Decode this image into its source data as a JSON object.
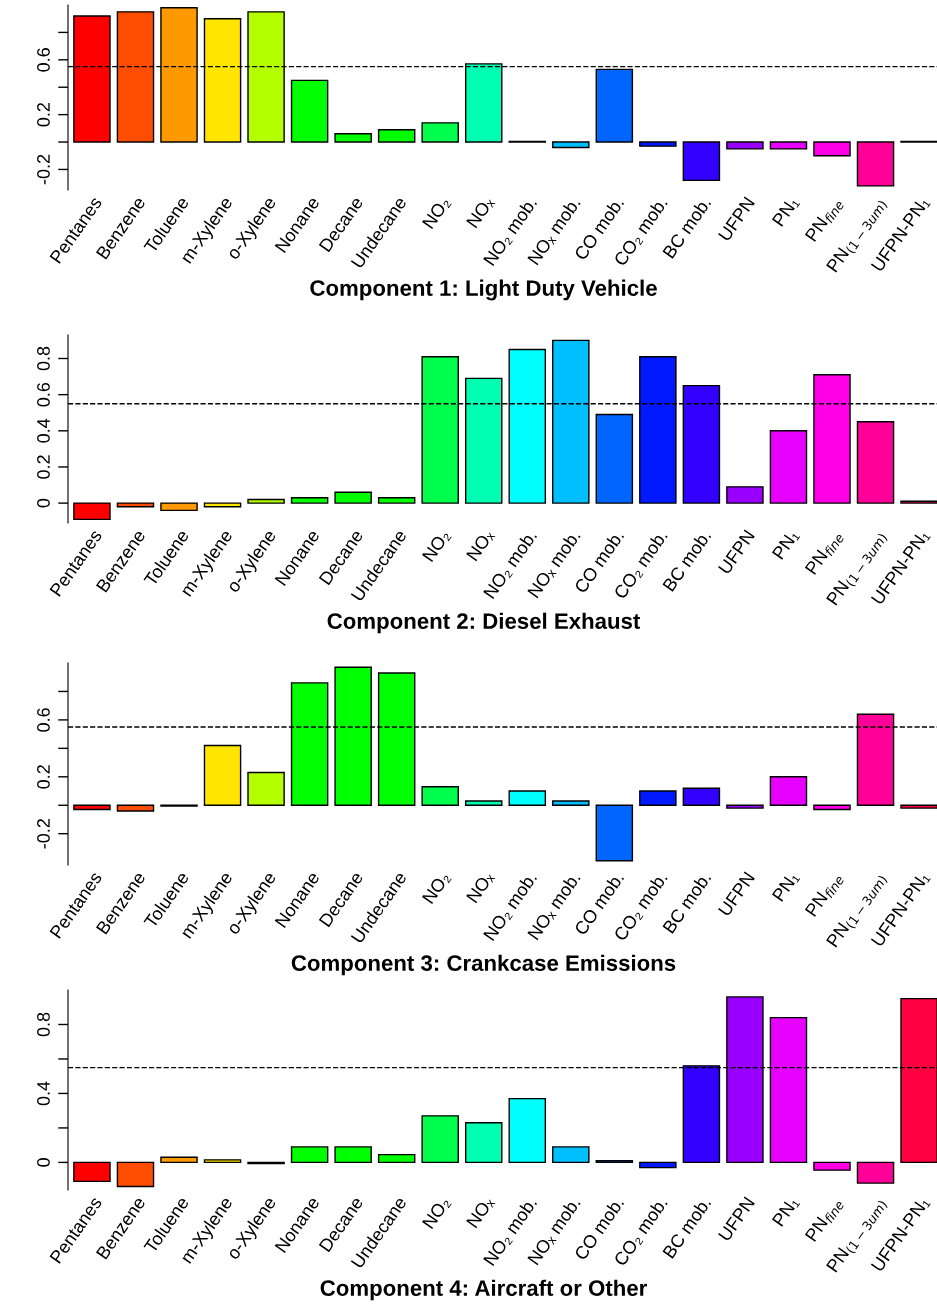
{
  "chart_data": [
    {
      "type": "bar",
      "title": "Component 1: Light Duty Vehicle",
      "categories": [
        "Pentanes",
        "Benzene",
        "Toluene",
        "m-Xylene",
        "o-Xylene",
        "Nonane",
        "Decane",
        "Undecane",
        "NO₂",
        "NOₓ",
        "NO₂ mob.",
        "NOₓ mob.",
        "CO mob.",
        "CO₂ mob.",
        "BC mob.",
        "UFPN",
        "PN₁",
        "PN$_{fine}$",
        "PN$_{(1−3um)}$",
        "UFPN-PN₁"
      ],
      "values": [
        0.92,
        0.95,
        0.98,
        0.9,
        0.95,
        0.45,
        0.06,
        0.09,
        0.14,
        0.57,
        0.005,
        -0.04,
        0.53,
        -0.03,
        -0.28,
        -0.05,
        -0.05,
        -0.1,
        -0.32,
        0.005
      ],
      "colors": [
        "#ff0000",
        "#ff4d00",
        "#ff9900",
        "#ffe500",
        "#b3ff00",
        "#00ff00",
        "#00ff00",
        "#00ff00",
        "#00ff4d",
        "#00ffb3",
        "#00ffff",
        "#00bfff",
        "#0066ff",
        "#0019ff",
        "#3300ff",
        "#9900ff",
        "#e500ff",
        "#ff00e6",
        "#ff0099",
        "#ff0040"
      ],
      "ylim": [
        -0.35,
        1.0
      ],
      "yticks": [
        -0.2,
        {
          "value": 0,
          "label": null
        },
        0.2,
        {
          "value": 0.4,
          "label": null
        },
        0.6,
        {
          "value": 0.8,
          "label": null
        }
      ],
      "ref_lines": [
        {
          "axis": "y",
          "value": 0.55,
          "color": "#000000",
          "line_style": "dashed"
        }
      ]
    },
    {
      "type": "bar",
      "title": "Component 2: Diesel Exhaust",
      "categories": [
        "Pentanes",
        "Benzene",
        "Toluene",
        "m-Xylene",
        "o-Xylene",
        "Nonane",
        "Decane",
        "Undecane",
        "NO₂",
        "NOₓ",
        "NO₂ mob.",
        "NOₓ mob.",
        "CO mob.",
        "CO₂ mob.",
        "BC mob.",
        "UFPN",
        "PN₁",
        "PN$_{fine}$",
        "PN$_{(1−3um)}$",
        "UFPN-PN₁"
      ],
      "values": [
        -0.09,
        -0.02,
        -0.04,
        -0.02,
        0.02,
        0.03,
        0.06,
        0.03,
        0.81,
        0.69,
        0.85,
        0.9,
        0.49,
        0.81,
        0.65,
        0.09,
        0.4,
        0.71,
        0.45,
        0.01
      ],
      "colors": [
        "#ff0000",
        "#ff4d00",
        "#ff9900",
        "#ffe500",
        "#b3ff00",
        "#00ff00",
        "#00ff00",
        "#00ff00",
        "#00ff4d",
        "#00ffb3",
        "#00ffff",
        "#00bfff",
        "#0066ff",
        "#0019ff",
        "#3300ff",
        "#9900ff",
        "#e500ff",
        "#ff00e6",
        "#ff0099",
        "#ff0040"
      ],
      "ylim": [
        -0.11,
        0.93
      ],
      "yticks": [
        0,
        0.2,
        0.4,
        0.6,
        0.8
      ],
      "ref_lines": [
        {
          "axis": "y",
          "value": 0.55,
          "color": "#000000",
          "line_style": "dashed"
        }
      ]
    },
    {
      "type": "bar",
      "title": "Component 3: Crankcase Emissions",
      "categories": [
        "Pentanes",
        "Benzene",
        "Toluene",
        "m-Xylene",
        "o-Xylene",
        "Nonane",
        "Decane",
        "Undecane",
        "NO₂",
        "NOₓ",
        "NO₂ mob.",
        "NOₓ mob.",
        "CO mob.",
        "CO₂ mob.",
        "BC mob.",
        "UFPN",
        "PN₁",
        "PN$_{fine}$",
        "PN$_{(1−3um)}$",
        "UFPN-PN₁"
      ],
      "values": [
        -0.03,
        -0.04,
        -0.005,
        0.42,
        0.23,
        0.86,
        0.97,
        0.93,
        0.13,
        0.03,
        0.1,
        0.03,
        -0.39,
        0.1,
        0.12,
        -0.02,
        0.2,
        -0.03,
        0.64,
        -0.02
      ],
      "colors": [
        "#ff0000",
        "#ff4d00",
        "#ff9900",
        "#ffe500",
        "#b3ff00",
        "#00ff00",
        "#00ff00",
        "#00ff00",
        "#00ff4d",
        "#00ffb3",
        "#00ffff",
        "#00bfff",
        "#0066ff",
        "#0019ff",
        "#3300ff",
        "#9900ff",
        "#e500ff",
        "#ff00e6",
        "#ff0099",
        "#ff0040"
      ],
      "ylim": [
        -0.42,
        1.0
      ],
      "yticks": [
        -0.2,
        {
          "value": 0,
          "label": null
        },
        0.2,
        {
          "value": 0.4,
          "label": null
        },
        0.6,
        {
          "value": 0.8,
          "label": null
        }
      ],
      "ref_lines": [
        {
          "axis": "y",
          "value": 0.55,
          "color": "#000000",
          "line_style": "dashed"
        }
      ]
    },
    {
      "type": "bar",
      "title": "Component 4: Aircraft or Other",
      "categories": [
        "Pentanes",
        "Benzene",
        "Toluene",
        "m-Xylene",
        "o-Xylene",
        "Nonane",
        "Decane",
        "Undecane",
        "NO₂",
        "NOₓ",
        "NO₂ mob.",
        "NOₓ mob.",
        "CO mob.",
        "CO₂ mob.",
        "BC mob.",
        "UFPN",
        "PN₁",
        "PN$_{fine}$",
        "PN$_{(1−3um)}$",
        "UFPN-PN₁"
      ],
      "values": [
        -0.11,
        -0.14,
        0.03,
        0.015,
        -0.007,
        0.09,
        0.09,
        0.045,
        0.27,
        0.23,
        0.37,
        0.09,
        0.01,
        -0.03,
        0.56,
        0.96,
        0.84,
        -0.045,
        -0.12,
        0.95
      ],
      "colors": [
        "#ff0000",
        "#ff4d00",
        "#ff9900",
        "#ffe500",
        "#b3ff00",
        "#00ff00",
        "#00ff00",
        "#00ff00",
        "#00ff4d",
        "#00ffb3",
        "#00ffff",
        "#00bfff",
        "#0066ff",
        "#0019ff",
        "#3300ff",
        "#9900ff",
        "#e500ff",
        "#ff00e6",
        "#ff0099",
        "#ff0040"
      ],
      "ylim": [
        -0.16,
        1.0
      ],
      "yticks": [
        0,
        {
          "value": 0.2,
          "label": null
        },
        0.4,
        {
          "value": 0.6,
          "label": null
        },
        0.8
      ],
      "ref_lines": [
        {
          "axis": "y",
          "value": 0.55,
          "color": "#000000",
          "line_style": "dashed"
        }
      ]
    }
  ]
}
